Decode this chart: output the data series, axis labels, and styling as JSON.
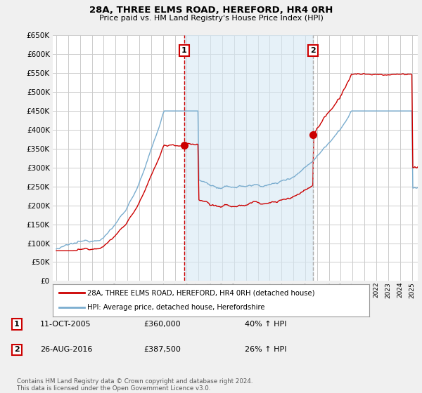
{
  "title": "28A, THREE ELMS ROAD, HEREFORD, HR4 0RH",
  "subtitle": "Price paid vs. HM Land Registry's House Price Index (HPI)",
  "ylim": [
    0,
    650000
  ],
  "yticks": [
    0,
    50000,
    100000,
    150000,
    200000,
    250000,
    300000,
    350000,
    400000,
    450000,
    500000,
    550000,
    600000,
    650000
  ],
  "legend_line1": "28A, THREE ELMS ROAD, HEREFORD, HR4 0RH (detached house)",
  "legend_line2": "HPI: Average price, detached house, Herefordshire",
  "sale1_label": "1",
  "sale1_date": "11-OCT-2005",
  "sale1_price": "£360,000",
  "sale1_hpi": "40% ↑ HPI",
  "sale2_label": "2",
  "sale2_date": "26-AUG-2016",
  "sale2_price": "£387,500",
  "sale2_hpi": "26% ↑ HPI",
  "footnote": "Contains HM Land Registry data © Crown copyright and database right 2024.\nThis data is licensed under the Open Government Licence v3.0.",
  "line_color_red": "#cc0000",
  "line_color_blue": "#7aadcf",
  "fill_color_blue": "#d6e8f4",
  "vline_color": "#cc0000",
  "vline2_color": "#aaaaaa",
  "background_color": "#f0f0f0",
  "plot_bg_color": "#ffffff",
  "sale1_x": 2005.79,
  "sale1_y": 360000,
  "sale2_x": 2016.65,
  "sale2_y": 387500,
  "xlim_left": 1994.7,
  "xlim_right": 2025.5
}
